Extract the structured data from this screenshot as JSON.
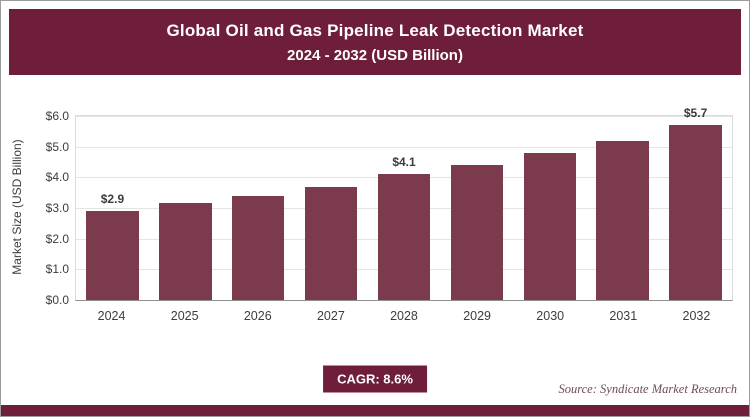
{
  "header": {
    "title_line1": "Global Oil and Gas Pipeline Leak Detection Market",
    "title_line2": "2024 - 2032 (USD Billion)"
  },
  "chart_data": {
    "type": "bar",
    "title": "Global Oil and Gas Pipeline Leak Detection Market 2024 - 2032 (USD Billion)",
    "categories": [
      "2024",
      "2025",
      "2026",
      "2027",
      "2028",
      "2029",
      "2030",
      "2031",
      "2032"
    ],
    "values": [
      2.9,
      3.15,
      3.4,
      3.7,
      4.1,
      4.4,
      4.8,
      5.2,
      5.7
    ],
    "data_labels": [
      {
        "index": 0,
        "text": "$2.9"
      },
      {
        "index": 4,
        "text": "$4.1"
      },
      {
        "index": 8,
        "text": "$5.7"
      }
    ],
    "xlabel": "",
    "ylabel": "Market Size (USD Billion)",
    "ylim": [
      0,
      6
    ],
    "yticks": [
      "$0.0",
      "$1.0",
      "$2.0",
      "$3.0",
      "$4.0",
      "$5.0",
      "$6.0"
    ],
    "grid": true,
    "legend": "none"
  },
  "footer": {
    "cagr_label": "CAGR: 8.6%",
    "source": "Source: Syndicate Market Research"
  },
  "colors": {
    "maroon": "#6e1e3a",
    "bar": "#7c3a4d",
    "source_text": "#6d4b5b",
    "axis_text": "#3d3d3d"
  }
}
